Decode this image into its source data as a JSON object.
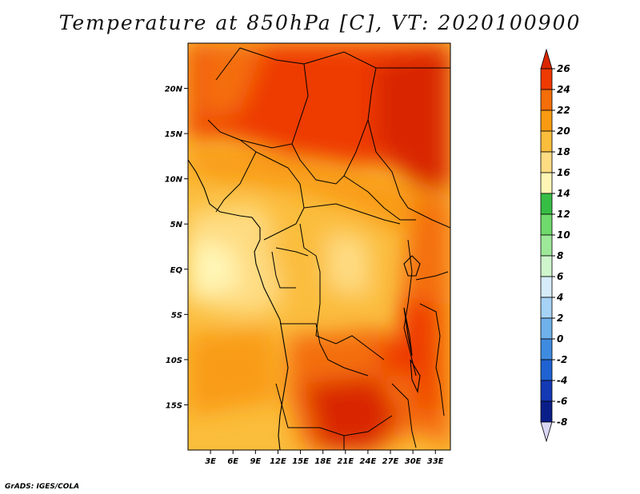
{
  "title": "Temperature at 850hPa [C], VT: 2020100900",
  "credit": "GrADS: IGES/COLA",
  "map": {
    "lon_ticks": [
      "3E",
      "6E",
      "9E",
      "12E",
      "15E",
      "18E",
      "21E",
      "24E",
      "27E",
      "30E",
      "33E"
    ],
    "lat_ticks": [
      "20N",
      "15N",
      "10N",
      "5N",
      "EQ",
      "5S",
      "10S",
      "15S"
    ],
    "lon_range": [
      0,
      35
    ],
    "lat_range": [
      -20,
      25
    ],
    "variable": "Temperature at 850hPa",
    "units": "C"
  },
  "colorbar": {
    "levels": [
      26,
      24,
      22,
      20,
      18,
      16,
      14,
      12,
      10,
      8,
      6,
      4,
      2,
      0,
      -2,
      -4,
      -6,
      -8
    ],
    "colors": [
      "#d92600",
      "#ee3a00",
      "#f46e0a",
      "#f99b12",
      "#fbbd3c",
      "#fedc82",
      "#fff6b6",
      "#37be45",
      "#6fd96b",
      "#9ee89a",
      "#cff5cc",
      "#d6ecfb",
      "#a6d2f5",
      "#6fb1eb",
      "#3f8be0",
      "#1f63d2",
      "#1439b5",
      "#0a1e8a",
      "#07046a"
    ],
    "over_color": "#d92600",
    "under_color": "#d9d6f5"
  }
}
